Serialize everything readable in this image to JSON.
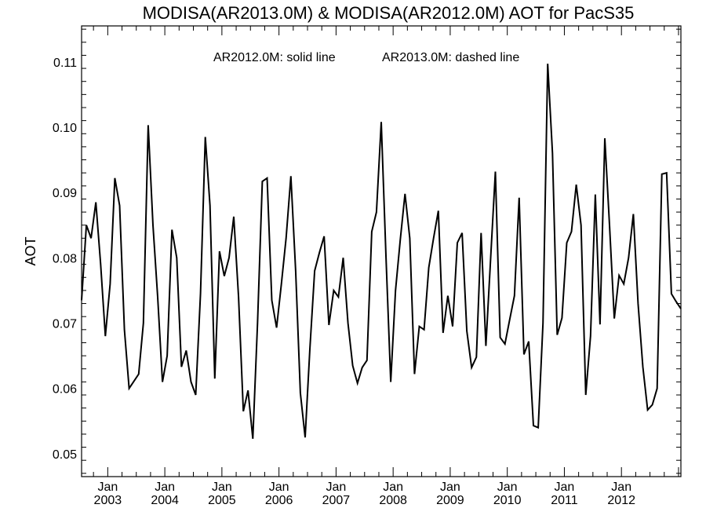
{
  "chart_data": {
    "type": "line",
    "title": "MODISA(AR2013.0M) & MODISA(AR2012.0M)  AOT for PacS35",
    "annotation_left": "AR2012.0M: solid line",
    "annotation_right": "AR2013.0M: dashed line",
    "xlabel": "",
    "ylabel": "AOT",
    "ylim": [
      0.0465,
      0.1155
    ],
    "x_range_month_index": [
      -5.5,
      120.5
    ],
    "x_tick_labels": [
      {
        "month_index": 0,
        "top": "Jan",
        "bottom": "2003"
      },
      {
        "month_index": 12,
        "top": "Jan",
        "bottom": "2004"
      },
      {
        "month_index": 24,
        "top": "Jan",
        "bottom": "2005"
      },
      {
        "month_index": 36,
        "top": "Jan",
        "bottom": "2006"
      },
      {
        "month_index": 48,
        "top": "Jan",
        "bottom": "2007"
      },
      {
        "month_index": 60,
        "top": "Jan",
        "bottom": "2008"
      },
      {
        "month_index": 72,
        "top": "Jan",
        "bottom": "2009"
      },
      {
        "month_index": 84,
        "top": "Jan",
        "bottom": "2010"
      },
      {
        "month_index": 96,
        "top": "Jan",
        "bottom": "2011"
      },
      {
        "month_index": 108,
        "top": "Jan",
        "bottom": "2012"
      }
    ],
    "y_ticks": [
      0.05,
      0.06,
      0.07,
      0.08,
      0.09,
      0.1,
      0.11
    ],
    "y_tick_labels": [
      "0.05",
      "0.06",
      "0.07",
      "0.08",
      "0.09",
      "0.10",
      "0.11"
    ],
    "series": [
      {
        "name": "AR2012.0M",
        "style": "solid",
        "color": "#000000",
        "points": [
          [
            -5.5,
            0.0735
          ],
          [
            -4.5,
            0.085
          ],
          [
            -3.5,
            0.083
          ],
          [
            -2.5,
            0.0885
          ],
          [
            -1.5,
            0.079
          ],
          [
            -0.5,
            0.068
          ],
          [
            0.5,
            0.076
          ],
          [
            1.5,
            0.0922
          ],
          [
            2.5,
            0.088
          ],
          [
            3.5,
            0.069
          ],
          [
            4.5,
            0.06
          ],
          [
            6.5,
            0.0622
          ],
          [
            7.5,
            0.07
          ],
          [
            8.5,
            0.1003
          ],
          [
            9.5,
            0.085
          ],
          [
            10.5,
            0.074
          ],
          [
            11.5,
            0.061
          ],
          [
            12.5,
            0.065
          ],
          [
            13.5,
            0.0843
          ],
          [
            14.5,
            0.08
          ],
          [
            15.5,
            0.0633
          ],
          [
            16.5,
            0.0658
          ],
          [
            17.5,
            0.061
          ],
          [
            18.5,
            0.059
          ],
          [
            19.5,
            0.0745
          ],
          [
            20.5,
            0.0985
          ],
          [
            21.5,
            0.088
          ],
          [
            22.5,
            0.0615
          ],
          [
            23.5,
            0.081
          ],
          [
            24.5,
            0.0772
          ],
          [
            25.5,
            0.08
          ],
          [
            26.5,
            0.0863
          ],
          [
            27.5,
            0.074
          ],
          [
            28.5,
            0.0565
          ],
          [
            29.5,
            0.0597
          ],
          [
            30.5,
            0.0523
          ],
          [
            31.5,
            0.07
          ],
          [
            32.5,
            0.0917
          ],
          [
            33.5,
            0.0922
          ],
          [
            34.5,
            0.0735
          ],
          [
            35.5,
            0.0693
          ],
          [
            36.5,
            0.076
          ],
          [
            37.5,
            0.083
          ],
          [
            38.5,
            0.0925
          ],
          [
            39.5,
            0.078
          ],
          [
            40.5,
            0.0593
          ],
          [
            41.5,
            0.0525
          ],
          [
            42.5,
            0.066
          ],
          [
            43.5,
            0.078
          ],
          [
            44.5,
            0.0808
          ],
          [
            45.5,
            0.0833
          ],
          [
            46.5,
            0.0697
          ],
          [
            47.5,
            0.075
          ],
          [
            48.5,
            0.074
          ],
          [
            49.5,
            0.08
          ],
          [
            50.5,
            0.07
          ],
          [
            51.5,
            0.0635
          ],
          [
            52.5,
            0.0608
          ],
          [
            53.5,
            0.0632
          ],
          [
            54.5,
            0.0643
          ],
          [
            55.5,
            0.084
          ],
          [
            56.5,
            0.087
          ],
          [
            57.5,
            0.1008
          ],
          [
            58.5,
            0.08
          ],
          [
            59.5,
            0.061
          ],
          [
            60.5,
            0.075
          ],
          [
            61.5,
            0.0828
          ],
          [
            62.5,
            0.0898
          ],
          [
            63.5,
            0.083
          ],
          [
            64.5,
            0.0622
          ],
          [
            65.5,
            0.0695
          ],
          [
            66.5,
            0.069
          ],
          [
            67.5,
            0.0785
          ],
          [
            68.5,
            0.083
          ],
          [
            69.5,
            0.0872
          ],
          [
            70.5,
            0.0685
          ],
          [
            71.5,
            0.0742
          ],
          [
            72.5,
            0.0695
          ],
          [
            73.5,
            0.0823
          ],
          [
            74.5,
            0.0838
          ],
          [
            75.5,
            0.0688
          ],
          [
            76.5,
            0.0632
          ],
          [
            77.5,
            0.0648
          ],
          [
            78.5,
            0.0838
          ],
          [
            79.5,
            0.0665
          ],
          [
            80.5,
            0.08
          ],
          [
            81.5,
            0.0932
          ],
          [
            82.5,
            0.0678
          ],
          [
            83.5,
            0.0668
          ],
          [
            84.5,
            0.0705
          ],
          [
            85.5,
            0.0742
          ],
          [
            86.5,
            0.0892
          ],
          [
            87.5,
            0.0652
          ],
          [
            88.5,
            0.0672
          ],
          [
            89.5,
            0.0543
          ],
          [
            90.5,
            0.054
          ],
          [
            91.5,
            0.07
          ],
          [
            92.5,
            0.1097
          ],
          [
            93.5,
            0.096
          ],
          [
            94.5,
            0.0682
          ],
          [
            95.5,
            0.0708
          ],
          [
            96.5,
            0.0823
          ],
          [
            97.5,
            0.084
          ],
          [
            98.5,
            0.0912
          ],
          [
            99.5,
            0.085
          ],
          [
            100.5,
            0.059
          ],
          [
            101.5,
            0.068
          ],
          [
            102.5,
            0.0897
          ],
          [
            103.5,
            0.0698
          ],
          [
            104.5,
            0.0983
          ],
          [
            105.5,
            0.085
          ],
          [
            106.5,
            0.0707
          ],
          [
            107.5,
            0.0773
          ],
          [
            108.5,
            0.076
          ],
          [
            109.5,
            0.08
          ],
          [
            110.5,
            0.0867
          ],
          [
            111.5,
            0.073
          ],
          [
            112.5,
            0.0633
          ],
          [
            113.5,
            0.0567
          ],
          [
            114.5,
            0.0575
          ],
          [
            115.5,
            0.06
          ],
          [
            116.5,
            0.0928
          ],
          [
            117.5,
            0.093
          ],
          [
            118.5,
            0.0745
          ],
          [
            119.5,
            0.0733
          ],
          [
            120.5,
            0.0722
          ]
        ]
      }
    ],
    "grid": false,
    "minor_ticks_per_major_y": 5,
    "minor_ticks_per_year_x": 4
  }
}
